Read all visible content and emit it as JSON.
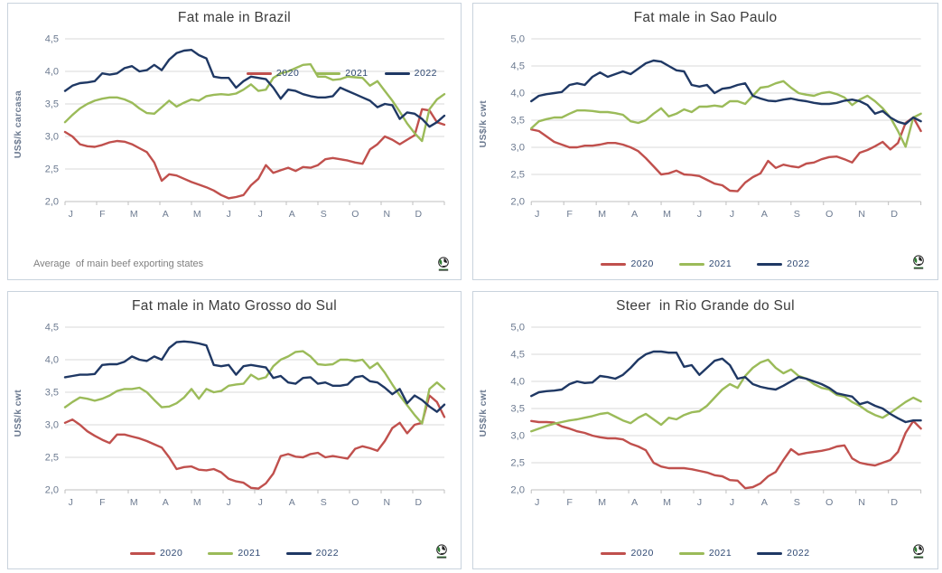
{
  "page": {
    "background": "#ffffff"
  },
  "chart_data": [
    {
      "id": "brazil",
      "type": "line",
      "title": "Fat male in Brazil",
      "ylabel": "US$/k carcasa",
      "ylim": [
        2.0,
        4.5
      ],
      "ytick_labels": [
        "2,0",
        "2,5",
        "3,0",
        "3,5",
        "4,0",
        "4,5"
      ],
      "x_tick_labels": [
        "J",
        "F",
        "M",
        "A",
        "M",
        "J",
        "J",
        "A",
        "S",
        "O",
        "N",
        "D"
      ],
      "grid": true,
      "legend_position": "top-right-inside",
      "note": "Average  of main beef exporting states",
      "series": [
        {
          "name": "2020",
          "color": "#C0504D",
          "values": [
            3.07,
            3.0,
            2.88,
            2.85,
            2.84,
            2.87,
            2.91,
            2.93,
            2.92,
            2.88,
            2.82,
            2.76,
            2.6,
            2.32,
            2.42,
            2.4,
            2.35,
            2.3,
            2.26,
            2.22,
            2.17,
            2.1,
            2.05,
            2.07,
            2.1,
            2.25,
            2.35,
            2.56,
            2.44,
            2.48,
            2.52,
            2.47,
            2.53,
            2.52,
            2.56,
            2.65,
            2.67,
            2.65,
            2.63,
            2.6,
            2.58,
            2.8,
            2.88,
            3.0,
            2.95,
            2.88,
            2.95,
            3.02,
            3.42,
            3.4,
            3.22,
            3.18
          ]
        },
        {
          "name": "2021",
          "color": "#9BBB59",
          "values": [
            3.22,
            3.33,
            3.43,
            3.5,
            3.55,
            3.58,
            3.6,
            3.6,
            3.57,
            3.52,
            3.43,
            3.36,
            3.35,
            3.45,
            3.55,
            3.46,
            3.52,
            3.57,
            3.55,
            3.62,
            3.64,
            3.65,
            3.64,
            3.66,
            3.72,
            3.8,
            3.7,
            3.72,
            3.9,
            3.97,
            4.0,
            4.05,
            4.1,
            4.11,
            3.92,
            3.92,
            3.87,
            3.88,
            3.92,
            3.91,
            3.9,
            3.78,
            3.85,
            3.7,
            3.55,
            3.38,
            3.2,
            3.05,
            2.93,
            3.42,
            3.57,
            3.65
          ]
        },
        {
          "name": "2022",
          "color": "#1F3864",
          "values": [
            3.7,
            3.78,
            3.82,
            3.83,
            3.85,
            3.97,
            3.95,
            3.97,
            4.05,
            4.08,
            4.0,
            4.02,
            4.1,
            4.02,
            4.18,
            4.28,
            4.32,
            4.33,
            4.25,
            4.2,
            3.92,
            3.9,
            3.9,
            3.75,
            3.85,
            3.92,
            3.9,
            3.88,
            3.75,
            3.58,
            3.72,
            3.7,
            3.65,
            3.62,
            3.6,
            3.6,
            3.62,
            3.75,
            3.7,
            3.65,
            3.6,
            3.55,
            3.45,
            3.5,
            3.48,
            3.27,
            3.37,
            3.35,
            3.27,
            3.15,
            3.22,
            3.32
          ]
        }
      ]
    },
    {
      "id": "sao-paulo",
      "type": "line",
      "title": "Fat male in Sao Paulo",
      "ylabel": "US$/k cwt",
      "ylim": [
        2.0,
        5.0
      ],
      "ytick_labels": [
        "2,0",
        "2,5",
        "3,0",
        "3,5",
        "4,0",
        "4,5",
        "5,0"
      ],
      "x_tick_labels": [
        "J",
        "F",
        "M",
        "A",
        "M",
        "J",
        "J",
        "A",
        "S",
        "O",
        "N",
        "D"
      ],
      "grid": true,
      "legend_position": "bottom",
      "note": "",
      "series": [
        {
          "name": "2020",
          "color": "#C0504D",
          "values": [
            3.33,
            3.3,
            3.2,
            3.1,
            3.05,
            3.0,
            3.0,
            3.03,
            3.03,
            3.05,
            3.08,
            3.08,
            3.05,
            3.0,
            2.93,
            2.8,
            2.65,
            2.5,
            2.52,
            2.57,
            2.5,
            2.49,
            2.47,
            2.4,
            2.33,
            2.3,
            2.2,
            2.19,
            2.35,
            2.45,
            2.52,
            2.75,
            2.62,
            2.68,
            2.65,
            2.63,
            2.7,
            2.72,
            2.78,
            2.82,
            2.83,
            2.78,
            2.72,
            2.9,
            2.95,
            3.02,
            3.1,
            2.96,
            3.08,
            3.45,
            3.55,
            3.3
          ]
        },
        {
          "name": "2021",
          "color": "#9BBB59",
          "values": [
            3.35,
            3.48,
            3.52,
            3.55,
            3.55,
            3.62,
            3.68,
            3.68,
            3.67,
            3.65,
            3.65,
            3.63,
            3.6,
            3.48,
            3.45,
            3.5,
            3.62,
            3.72,
            3.57,
            3.62,
            3.7,
            3.65,
            3.75,
            3.75,
            3.77,
            3.75,
            3.85,
            3.85,
            3.8,
            3.95,
            4.1,
            4.12,
            4.18,
            4.22,
            4.1,
            4.0,
            3.97,
            3.95,
            4.0,
            4.02,
            3.98,
            3.92,
            3.78,
            3.88,
            3.95,
            3.85,
            3.72,
            3.55,
            3.3,
            3.01,
            3.55,
            3.62
          ]
        },
        {
          "name": "2022",
          "color": "#1F3864",
          "values": [
            3.85,
            3.95,
            3.98,
            4.0,
            4.02,
            4.15,
            4.18,
            4.15,
            4.3,
            4.38,
            4.3,
            4.35,
            4.4,
            4.35,
            4.45,
            4.55,
            4.6,
            4.58,
            4.5,
            4.42,
            4.4,
            4.15,
            4.12,
            4.15,
            4.0,
            4.08,
            4.1,
            4.15,
            4.18,
            3.95,
            3.9,
            3.86,
            3.85,
            3.88,
            3.9,
            3.87,
            3.85,
            3.82,
            3.8,
            3.8,
            3.82,
            3.86,
            3.88,
            3.85,
            3.78,
            3.62,
            3.67,
            3.55,
            3.47,
            3.43,
            3.55,
            3.48
          ]
        }
      ]
    },
    {
      "id": "mato-grosso-do-sul",
      "type": "line",
      "title": "Fat male in Mato Grosso do Sul",
      "ylabel": "US$/k cwt",
      "ylim": [
        2.0,
        4.5
      ],
      "ytick_labels": [
        "2,0",
        "2,5",
        "3,0",
        "3,5",
        "4,0",
        "4,5"
      ],
      "x_tick_labels": [
        "J",
        "F",
        "M",
        "A",
        "M",
        "J",
        "J",
        "A",
        "S",
        "O",
        "N",
        "D"
      ],
      "grid": true,
      "legend_position": "bottom",
      "note": "",
      "series": [
        {
          "name": "2020",
          "color": "#C0504D",
          "values": [
            3.03,
            3.08,
            3.0,
            2.9,
            2.83,
            2.77,
            2.72,
            2.85,
            2.85,
            2.82,
            2.79,
            2.75,
            2.7,
            2.65,
            2.5,
            2.32,
            2.35,
            2.36,
            2.31,
            2.3,
            2.32,
            2.27,
            2.17,
            2.13,
            2.11,
            2.03,
            2.02,
            2.1,
            2.25,
            2.52,
            2.55,
            2.51,
            2.5,
            2.55,
            2.57,
            2.5,
            2.52,
            2.5,
            2.48,
            2.63,
            2.67,
            2.64,
            2.6,
            2.75,
            2.95,
            3.03,
            2.87,
            3.0,
            3.03,
            3.45,
            3.35,
            3.12
          ]
        },
        {
          "name": "2021",
          "color": "#9BBB59",
          "values": [
            3.27,
            3.35,
            3.42,
            3.4,
            3.37,
            3.4,
            3.45,
            3.52,
            3.55,
            3.55,
            3.57,
            3.5,
            3.38,
            3.27,
            3.28,
            3.33,
            3.42,
            3.55,
            3.4,
            3.55,
            3.5,
            3.52,
            3.6,
            3.62,
            3.63,
            3.77,
            3.7,
            3.73,
            3.9,
            4.0,
            4.05,
            4.12,
            4.13,
            4.05,
            3.93,
            3.92,
            3.93,
            4.0,
            4.0,
            3.98,
            4.0,
            3.87,
            3.95,
            3.8,
            3.62,
            3.45,
            3.3,
            3.15,
            3.02,
            3.55,
            3.65,
            3.55
          ]
        },
        {
          "name": "2022",
          "color": "#1F3864",
          "values": [
            3.73,
            3.75,
            3.77,
            3.77,
            3.78,
            3.92,
            3.93,
            3.93,
            3.97,
            4.05,
            4.0,
            3.98,
            4.05,
            4.0,
            4.18,
            4.27,
            4.28,
            4.27,
            4.25,
            4.22,
            3.92,
            3.9,
            3.92,
            3.77,
            3.9,
            3.92,
            3.9,
            3.88,
            3.72,
            3.75,
            3.65,
            3.63,
            3.72,
            3.73,
            3.63,
            3.65,
            3.6,
            3.6,
            3.62,
            3.73,
            3.75,
            3.67,
            3.65,
            3.57,
            3.47,
            3.55,
            3.33,
            3.45,
            3.38,
            3.28,
            3.2,
            3.31
          ]
        }
      ]
    },
    {
      "id": "rio-grande-do-sul",
      "type": "line",
      "title": "Steer  in Rio Grande do Sul",
      "ylabel": "US$/k cwt",
      "ylim": [
        2.0,
        5.0
      ],
      "ytick_labels": [
        "2,0",
        "2,5",
        "3,0",
        "3,5",
        "4,0",
        "4,5",
        "5,0"
      ],
      "x_tick_labels": [
        "J",
        "F",
        "M",
        "A",
        "M",
        "J",
        "J",
        "A",
        "S",
        "O",
        "N",
        "D"
      ],
      "grid": true,
      "legend_position": "bottom",
      "note": "",
      "series": [
        {
          "name": "2020",
          "color": "#C0504D",
          "values": [
            3.27,
            3.25,
            3.25,
            3.24,
            3.17,
            3.13,
            3.08,
            3.05,
            3.0,
            2.97,
            2.95,
            2.95,
            2.93,
            2.85,
            2.8,
            2.73,
            2.5,
            2.43,
            2.4,
            2.4,
            2.4,
            2.38,
            2.35,
            2.32,
            2.27,
            2.25,
            2.18,
            2.17,
            2.03,
            2.05,
            2.12,
            2.25,
            2.33,
            2.55,
            2.75,
            2.65,
            2.68,
            2.7,
            2.72,
            2.75,
            2.8,
            2.82,
            2.58,
            2.5,
            2.47,
            2.45,
            2.5,
            2.55,
            2.7,
            3.05,
            3.27,
            3.13
          ]
        },
        {
          "name": "2021",
          "color": "#9BBB59",
          "values": [
            3.08,
            3.13,
            3.18,
            3.22,
            3.25,
            3.28,
            3.3,
            3.33,
            3.36,
            3.4,
            3.42,
            3.35,
            3.28,
            3.23,
            3.33,
            3.4,
            3.3,
            3.2,
            3.33,
            3.3,
            3.38,
            3.43,
            3.45,
            3.55,
            3.7,
            3.85,
            3.95,
            3.88,
            4.1,
            4.25,
            4.35,
            4.4,
            4.25,
            4.15,
            4.22,
            4.1,
            4.05,
            3.95,
            3.88,
            3.85,
            3.75,
            3.72,
            3.62,
            3.55,
            3.45,
            3.38,
            3.33,
            3.42,
            3.52,
            3.62,
            3.7,
            3.63
          ]
        },
        {
          "name": "2022",
          "color": "#1F3864",
          "values": [
            3.73,
            3.8,
            3.82,
            3.83,
            3.85,
            3.95,
            4.0,
            3.97,
            3.98,
            4.1,
            4.08,
            4.05,
            4.12,
            4.25,
            4.4,
            4.5,
            4.55,
            4.55,
            4.53,
            4.53,
            4.27,
            4.3,
            4.12,
            4.25,
            4.38,
            4.42,
            4.3,
            4.05,
            4.08,
            3.95,
            3.9,
            3.87,
            3.85,
            3.92,
            4.0,
            4.08,
            4.05,
            4.0,
            3.95,
            3.88,
            3.78,
            3.75,
            3.72,
            3.58,
            3.62,
            3.55,
            3.5,
            3.4,
            3.32,
            3.25,
            3.28,
            3.28
          ]
        }
      ]
    }
  ],
  "style": {
    "grid_color": "#d9d9d9",
    "axis_color": "#bfbfbf",
    "tick_label_color": "#6d7b91",
    "legend_label_color": "#2e4872",
    "title_color": "#3b3b3b",
    "note_color": "#808080"
  }
}
